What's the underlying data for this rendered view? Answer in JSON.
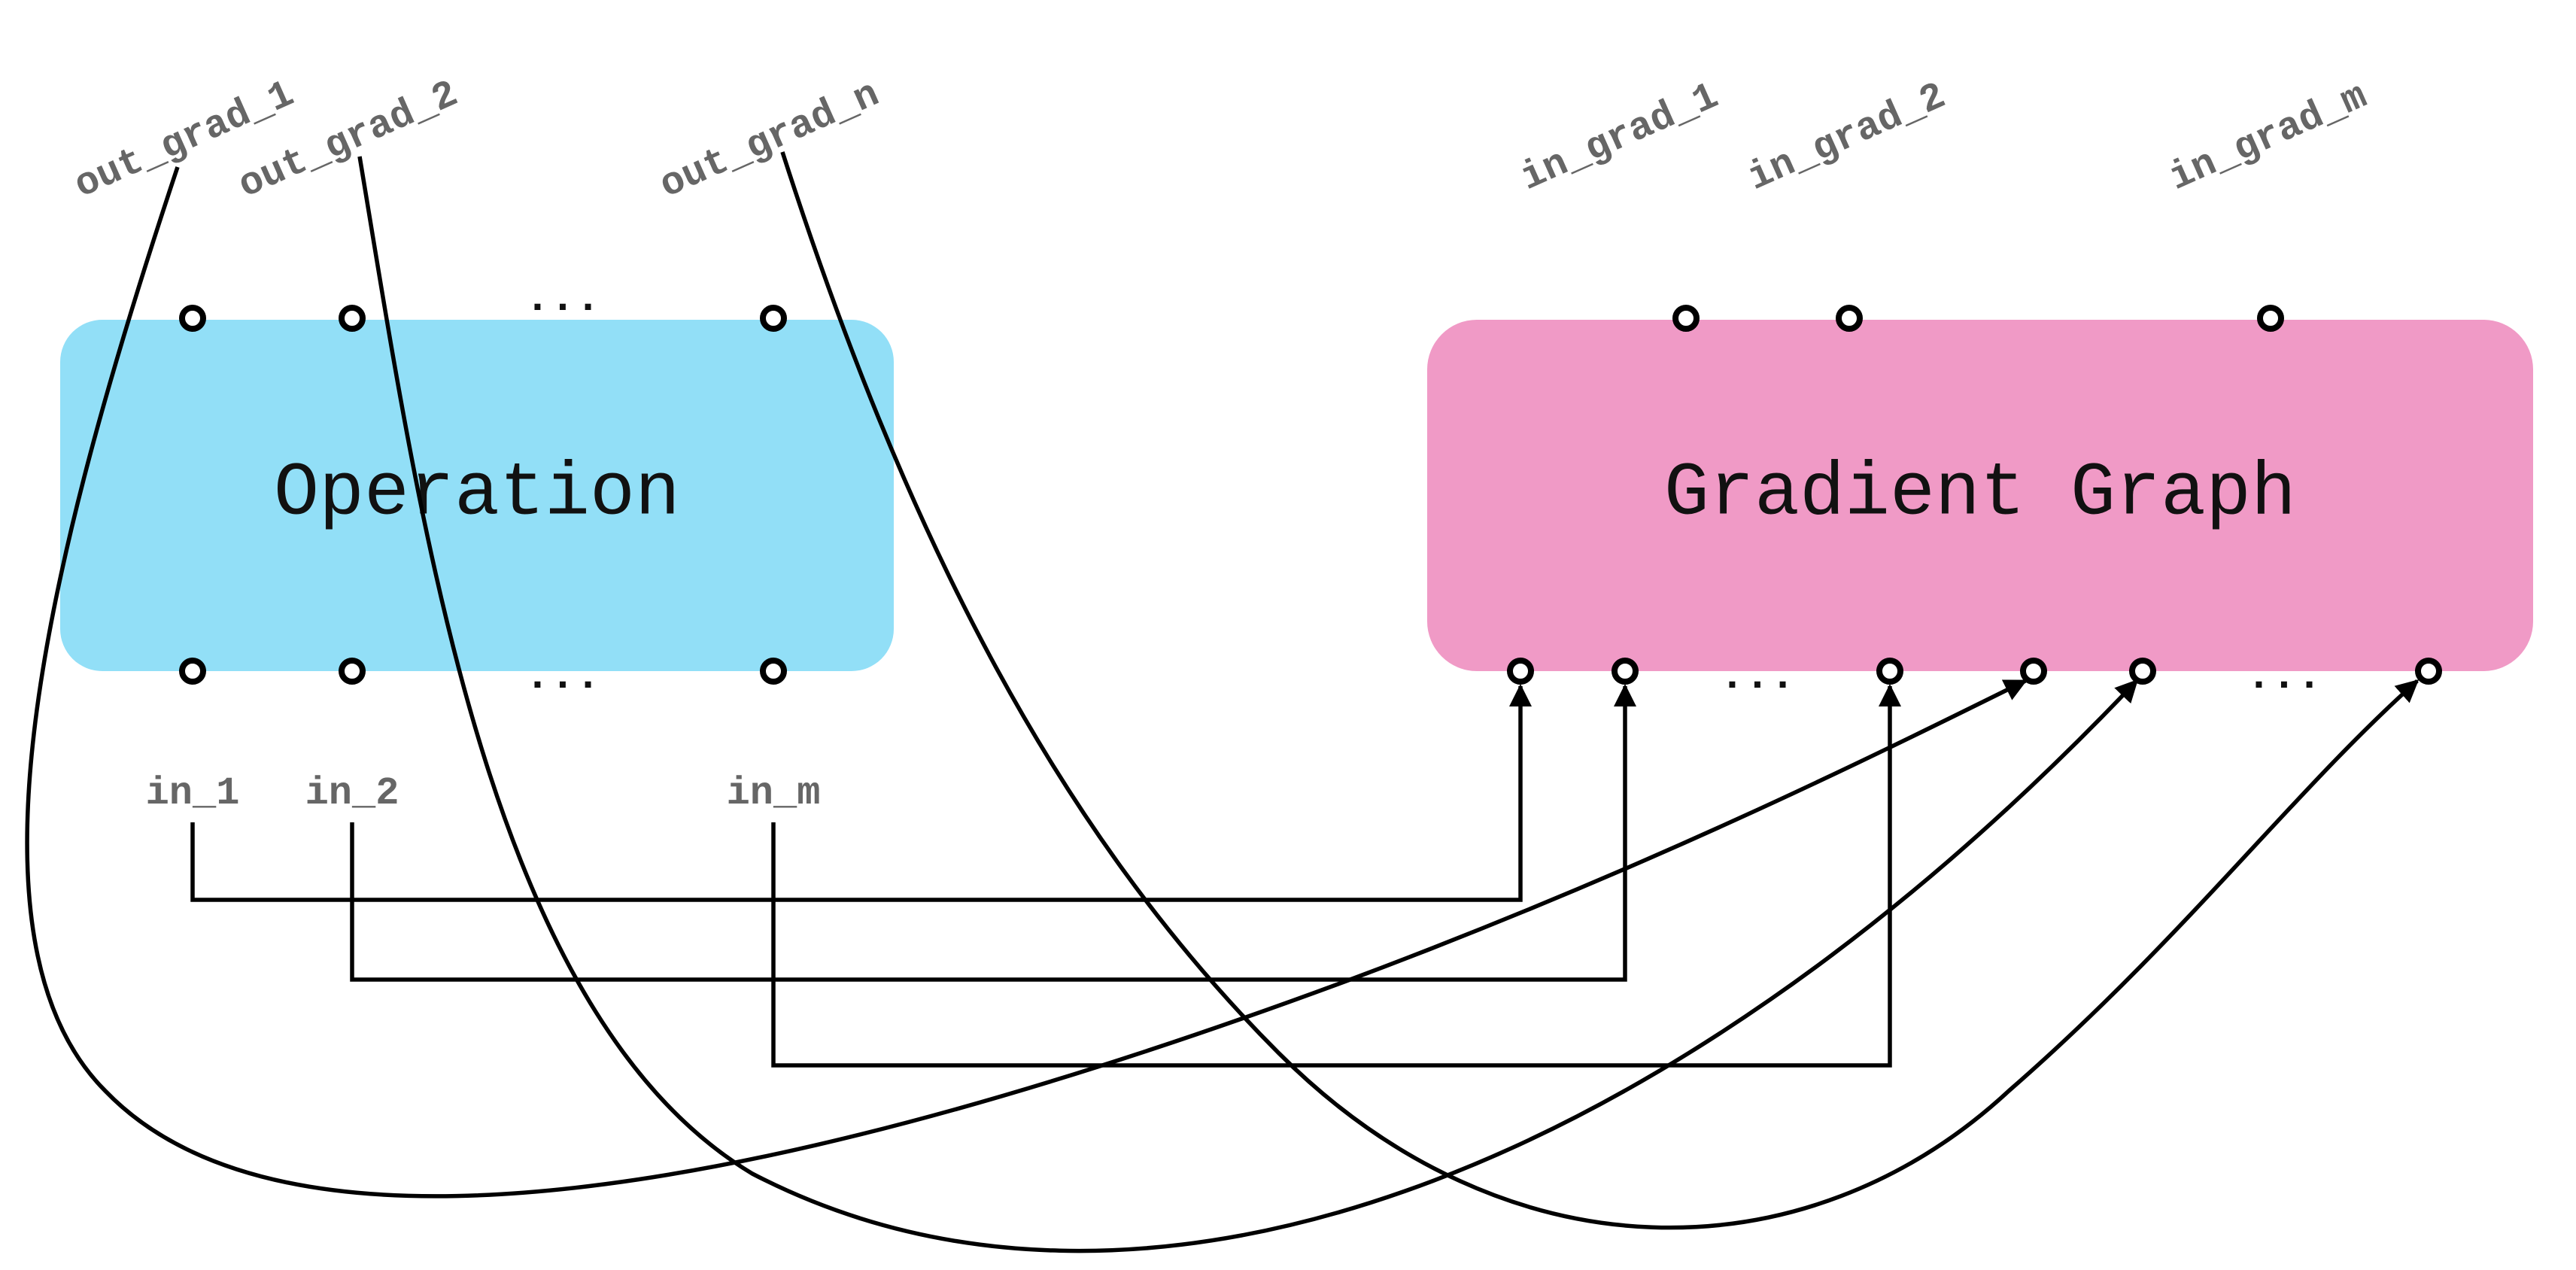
{
  "operation": {
    "title": "Operation",
    "color": "#92dff7",
    "inputs": [
      "in_1",
      "in_2",
      "in_m"
    ],
    "outputs": [
      "out_grad_1",
      "out_grad_2",
      "out_grad_n"
    ],
    "ellipsis": "..."
  },
  "gradient_graph": {
    "title": "Gradient Graph",
    "color": "#f09ac6",
    "outputs": [
      "in_grad_1",
      "in_grad_2",
      "in_grad_m"
    ],
    "ellipsis": "..."
  }
}
